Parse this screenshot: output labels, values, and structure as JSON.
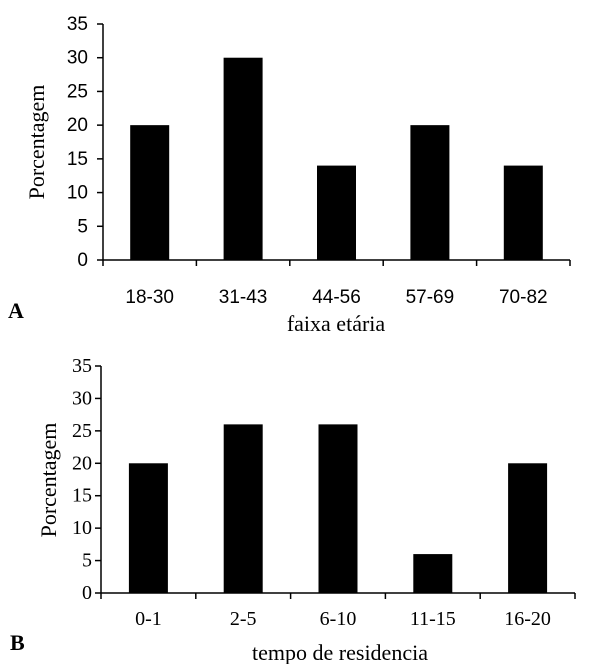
{
  "chart_data": [
    {
      "type": "bar",
      "panel_label": "A",
      "categories": [
        "18-30",
        "31-43",
        "44-56",
        "57-69",
        "70-82"
      ],
      "values": [
        20,
        30,
        14,
        20,
        14
      ],
      "title": "",
      "xlabel": "faixa etária",
      "ylabel": "Porcentagem",
      "ylim": [
        0,
        35
      ],
      "yticks": [
        "0",
        "5",
        "10",
        "15",
        "20",
        "25",
        "30",
        "35"
      ],
      "grid": false,
      "bar_color": "#000000"
    },
    {
      "type": "bar",
      "panel_label": "B",
      "categories": [
        "0-1",
        "2-5",
        "6-10",
        "11-15",
        "16-20"
      ],
      "values": [
        20,
        26,
        26,
        6,
        20
      ],
      "title": "",
      "xlabel": "tempo de residencia",
      "ylabel": "Porcentagem",
      "ylim": [
        0,
        35
      ],
      "yticks": [
        "0",
        "5",
        "10",
        "15",
        "20",
        "25",
        "30",
        "35"
      ],
      "grid": false,
      "bar_color": "#000000"
    }
  ]
}
